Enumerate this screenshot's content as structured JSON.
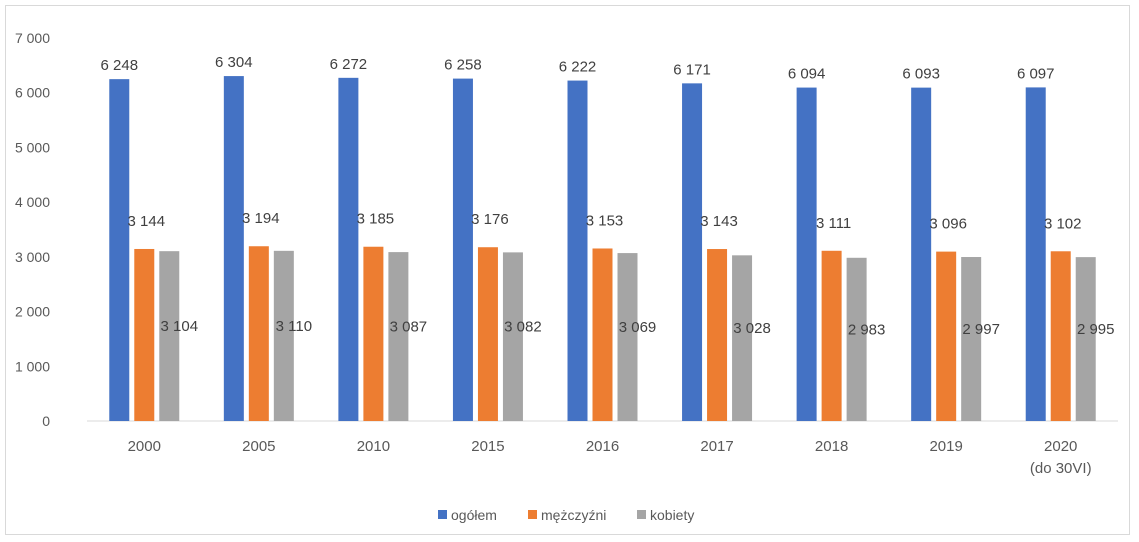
{
  "chart_data": {
    "type": "bar",
    "categories": [
      "2000",
      "2005",
      "2010",
      "2015",
      "2016",
      "2017",
      "2018",
      "2019",
      "2020 (do 30VI)"
    ],
    "series": [
      {
        "name": "ogółem",
        "color": "#4472c4",
        "values": [
          6248,
          6304,
          6272,
          6258,
          6222,
          6171,
          6094,
          6093,
          6097
        ],
        "labels": [
          "6 248",
          "6 304",
          "6 272",
          "6 258",
          "6 222",
          "6 171",
          "6 094",
          "6 093",
          "6 097"
        ]
      },
      {
        "name": "mężczyźni",
        "color": "#ed7d31",
        "values": [
          3144,
          3194,
          3185,
          3176,
          3153,
          3143,
          3111,
          3096,
          3102
        ],
        "labels": [
          "3 144",
          "3 194",
          "3 185",
          "3 176",
          "3 153",
          "3 143",
          "3 111",
          "3 096",
          "3 102"
        ]
      },
      {
        "name": "kobiety",
        "color": "#a5a5a5",
        "values": [
          3104,
          3110,
          3087,
          3082,
          3069,
          3028,
          2983,
          2997,
          2995
        ],
        "labels": [
          "3 104",
          "3 110",
          "3 087",
          "3 082",
          "3 069",
          "3 028",
          "2 983",
          "2 997",
          "2 995"
        ]
      }
    ],
    "ylim": [
      0,
      7000
    ],
    "yticks": [
      0,
      1000,
      2000,
      3000,
      4000,
      5000,
      6000,
      7000
    ],
    "ytick_labels": [
      "0",
      "1 000",
      "2 000",
      "3 000",
      "4 000",
      "5 000",
      "6 000",
      "7 000"
    ],
    "grid": false,
    "legend": "bottom",
    "title": "",
    "xlabel": "",
    "ylabel": ""
  }
}
